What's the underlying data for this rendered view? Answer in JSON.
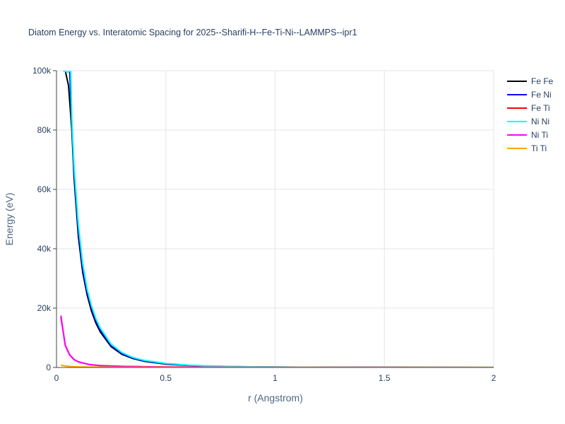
{
  "chart_data": {
    "type": "line",
    "title": "Diatom Energy vs. Interatomic Spacing for 2025--Sharifi-H--Fe-Ti-Ni--LAMMPS--ipr1",
    "xlabel": "r (Angstrom)",
    "ylabel": "Energy (eV)",
    "xlim": [
      0,
      2
    ],
    "ylim": [
      0,
      100000
    ],
    "x_ticks": [
      0,
      0.5,
      1,
      1.5,
      2
    ],
    "x_tick_labels": [
      "0",
      "0.5",
      "1",
      "1.5",
      "2"
    ],
    "y_ticks": [
      0,
      20000,
      40000,
      60000,
      80000,
      100000
    ],
    "y_tick_labels": [
      "0",
      "20k",
      "40k",
      "60k",
      "80k",
      "100k"
    ],
    "grid": true,
    "legend_position": "top-right",
    "series": [
      {
        "name": "Fe Fe",
        "color": "#000000",
        "x": [
          0.04,
          0.055,
          0.07,
          0.08,
          0.1,
          0.12,
          0.14,
          0.16,
          0.18,
          0.2,
          0.25,
          0.3,
          0.35,
          0.4,
          0.5,
          0.6,
          0.7,
          0.8,
          0.9,
          1.0,
          1.2,
          1.4,
          1.6,
          1.8,
          2.0
        ],
        "y": [
          100000,
          95000,
          80000,
          64000,
          44000,
          32000,
          24500,
          19000,
          15000,
          12000,
          7000,
          4400,
          3000,
          2100,
          1150,
          700,
          450,
          300,
          200,
          140,
          80,
          50,
          30,
          20,
          10
        ]
      },
      {
        "name": "Fe Ni",
        "color": "#0000ff",
        "x": [
          0.06,
          0.07,
          0.08,
          0.1,
          0.12,
          0.14,
          0.16,
          0.18,
          0.2,
          0.25,
          0.3,
          0.35,
          0.4,
          0.5,
          0.6,
          0.7,
          0.8,
          0.9,
          1.0,
          1.2,
          1.4,
          1.6,
          1.8,
          2.0
        ],
        "y": [
          100000,
          83000,
          66000,
          46000,
          33500,
          25500,
          20000,
          15800,
          12700,
          7400,
          4700,
          3150,
          2250,
          1250,
          750,
          480,
          320,
          215,
          150,
          85,
          55,
          32,
          22,
          12
        ]
      },
      {
        "name": "Fe Ti",
        "color": "#ff0000",
        "x": [
          0.02,
          0.04,
          0.06,
          0.08,
          0.1,
          0.15,
          0.2,
          0.3,
          0.4,
          0.5,
          0.6,
          0.8,
          1.0,
          1.5,
          2.0
        ],
        "y": [
          17000,
          7500,
          4300,
          2700,
          1900,
          1000,
          650,
          380,
          260,
          190,
          150,
          100,
          70,
          30,
          10
        ]
      },
      {
        "name": "Ni Ni",
        "color": "#00ffff",
        "x": [
          0.03,
          0.05,
          0.065,
          0.07,
          0.08,
          0.1,
          0.12,
          0.14,
          0.16,
          0.18,
          0.2,
          0.25,
          0.3,
          0.35,
          0.4,
          0.5,
          0.6,
          0.7,
          0.8,
          0.9,
          1.0,
          1.2,
          1.4,
          1.6,
          1.8,
          2.0
        ],
        "y": [
          100000,
          99500,
          100000,
          84000,
          68000,
          48000,
          35000,
          26500,
          20800,
          16500,
          13300,
          7800,
          5000,
          3350,
          2400,
          1350,
          820,
          530,
          350,
          240,
          170,
          95,
          58,
          35,
          22,
          12
        ]
      },
      {
        "name": "Ni Ti",
        "color": "#ff00ff",
        "x": [
          0.02,
          0.04,
          0.06,
          0.08,
          0.1,
          0.15,
          0.2,
          0.25,
          0.3,
          0.4,
          0.5,
          0.6,
          0.8,
          1.0,
          1.5,
          2.0
        ],
        "y": [
          17500,
          7400,
          4200,
          2650,
          1850,
          980,
          620,
          480,
          360,
          250,
          180,
          140,
          95,
          65,
          28,
          10
        ]
      },
      {
        "name": "Ti Ti",
        "color": "#ffa500",
        "x": [
          0.02,
          0.04,
          0.06,
          0.1,
          0.15,
          0.2,
          0.3,
          0.5,
          0.8,
          1.0,
          1.5,
          2.0
        ],
        "y": [
          800,
          500,
          350,
          220,
          150,
          110,
          70,
          40,
          25,
          18,
          10,
          5
        ]
      }
    ]
  }
}
